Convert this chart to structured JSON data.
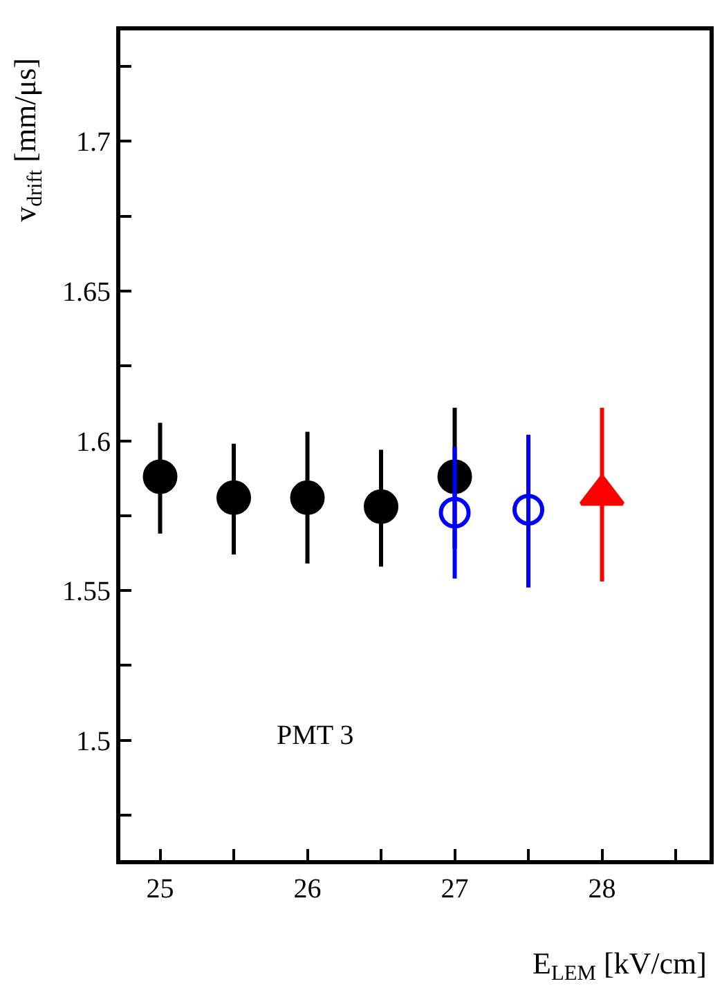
{
  "chart_data": {
    "type": "scatter",
    "xlabel": "E$_{LEM}$ [kV/cm]",
    "ylabel": "v$_{drift}$ [mm/μs]",
    "annotations": [
      "PMT 3"
    ],
    "xlim": [
      24.73,
      28.73
    ],
    "ylim": [
      1.46,
      1.737
    ],
    "xticks": [
      25,
      {
        "value": 25.5,
        "label": null
      },
      26,
      {
        "value": 26.5,
        "label": null
      },
      27,
      {
        "value": 27.5,
        "label": null
      },
      28,
      {
        "value": 28.5,
        "label": null
      }
    ],
    "yticks": [
      {
        "value": 1.475,
        "label": null
      },
      1.5,
      {
        "value": 1.525,
        "label": null
      },
      1.55,
      {
        "value": 1.575,
        "label": null
      },
      1.6,
      {
        "value": 1.625,
        "label": null
      },
      1.65,
      {
        "value": 1.675,
        "label": null
      },
      1.7,
      {
        "value": 1.725,
        "label": null
      }
    ],
    "legend": false,
    "series": [
      {
        "color": "#000000",
        "marker": "circle",
        "x": [
          25,
          25.5,
          26,
          26.5,
          27
        ],
        "values": [
          1.588,
          1.581,
          1.581,
          1.578,
          1.588
        ],
        "errors": [
          [
            1.569,
            1.606
          ],
          [
            1.562,
            1.599
          ],
          [
            1.559,
            1.603
          ],
          [
            1.558,
            1.597
          ],
          [
            1.564,
            1.611
          ]
        ]
      },
      {
        "color": "#0000ff",
        "marker": "circle-open",
        "x": [
          27,
          27.5
        ],
        "values": [
          1.576,
          1.577
        ],
        "errors": [
          [
            1.554,
            1.598
          ],
          [
            1.551,
            1.602
          ]
        ]
      },
      {
        "color": "#ff0000",
        "marker": "triangle",
        "x": [
          28
        ],
        "values": [
          1.582
        ],
        "errors": [
          [
            1.553,
            1.611
          ]
        ]
      }
    ]
  }
}
